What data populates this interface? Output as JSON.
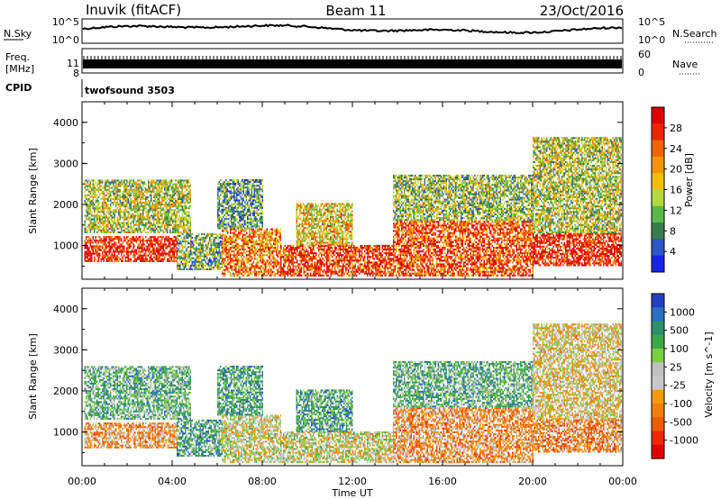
{
  "header": {
    "station": "Inuvik (fitACF)",
    "beam": "Beam 11",
    "date": "23/Oct/2016"
  },
  "nsky_panel": {
    "left_label": "N.Sky",
    "left_ticks": [
      "10^5",
      "10^0"
    ],
    "right_ticks": [
      "10^5",
      "10^0"
    ],
    "right_label": "N.Search"
  },
  "freq_panel": {
    "left_label_line1": "Freq.",
    "left_label_line2": "[MHz]",
    "left_ticks": [
      "11",
      "8"
    ],
    "right_ticks": [
      "60",
      "0"
    ],
    "right_label": "Nave"
  },
  "cpid_panel": {
    "label": "CPID",
    "program": "twofsound 3503"
  },
  "chart_data": [
    {
      "type": "heatmap",
      "title": "",
      "xlabel": "",
      "ylabel": "Slant Range [km]",
      "x_ticks": [
        "00:00",
        "04:00",
        "08:00",
        "12:00",
        "16:00",
        "20:00",
        "00:00"
      ],
      "x_range_hours": [
        0,
        24
      ],
      "y_ticks": [
        1000,
        2000,
        3000,
        4000
      ],
      "ylim": [
        180,
        4500
      ],
      "colorbar": {
        "label": "Power [dB]",
        "ticks": [
          "4",
          "8",
          "12",
          "16",
          "20",
          "24",
          "28"
        ],
        "colors": [
          "#1a22e8",
          "#2d55c4",
          "#3a7d4c",
          "#58b84a",
          "#b4d840",
          "#f0c000",
          "#f59400",
          "#f26300",
          "#ee2600",
          "#e00000"
        ]
      },
      "colors": {
        "power_high": "#ee1c00",
        "power_mid": "#f59400",
        "power_low": "#3a7d4c",
        "power_lowest": "#1a3ec8"
      },
      "regions": [
        {
          "t0": 0.1,
          "t1": 4.2,
          "r0": 600,
          "r1": 1200,
          "level": 0.9
        },
        {
          "t0": 0.1,
          "t1": 4.8,
          "r0": 1300,
          "r1": 2600,
          "level": 0.45
        },
        {
          "t0": 4.2,
          "t1": 6.2,
          "r0": 400,
          "r1": 1300,
          "level": 0.35
        },
        {
          "t0": 6.2,
          "t1": 8.8,
          "r0": 250,
          "r1": 1400,
          "level": 0.7
        },
        {
          "t0": 6.0,
          "t1": 8.0,
          "r0": 1400,
          "r1": 2600,
          "level": 0.3
        },
        {
          "t0": 8.8,
          "t1": 13.8,
          "r0": 250,
          "r1": 1000,
          "level": 0.85
        },
        {
          "t0": 9.5,
          "t1": 12.0,
          "r0": 1000,
          "r1": 2000,
          "level": 0.55
        },
        {
          "t0": 13.8,
          "t1": 20.0,
          "r0": 250,
          "r1": 1600,
          "level": 0.8
        },
        {
          "t0": 13.8,
          "t1": 20.0,
          "r0": 1600,
          "r1": 2700,
          "level": 0.4
        },
        {
          "t0": 20.0,
          "t1": 23.9,
          "r0": 500,
          "r1": 1300,
          "level": 0.9
        },
        {
          "t0": 20.0,
          "t1": 23.9,
          "r0": 1300,
          "r1": 3600,
          "level": 0.45
        }
      ]
    },
    {
      "type": "heatmap",
      "title": "",
      "xlabel": "Time UT",
      "ylabel": "Slant Range [km]",
      "x_ticks": [
        "00:00",
        "04:00",
        "08:00",
        "12:00",
        "16:00",
        "20:00",
        "00:00"
      ],
      "x_range_hours": [
        0,
        24
      ],
      "y_ticks": [
        1000,
        2000,
        3000,
        4000
      ],
      "ylim": [
        180,
        4500
      ],
      "colorbar": {
        "label": "Velocity [m s^-1]",
        "ticks": [
          "1000",
          "500",
          "100",
          "25",
          "-25",
          "-100",
          "-500",
          "-1000"
        ],
        "colors": [
          "#2040c0",
          "#2a6fc0",
          "#2e8f6a",
          "#3aa848",
          "#7cd040",
          "#c0c0c0",
          "#c8c8c8",
          "#f59a00",
          "#f28000",
          "#f25a00",
          "#ee2800",
          "#e00000"
        ]
      },
      "colors": {
        "toward": "#2e8f4a",
        "away": "#f59000",
        "ground_scatter": "#c4c4c4"
      },
      "regions": [
        {
          "t0": 0.1,
          "t1": 4.2,
          "r0": 600,
          "r1": 1200,
          "level": -0.3
        },
        {
          "t0": 0.1,
          "t1": 4.8,
          "r0": 1300,
          "r1": 2600,
          "level": 0.4
        },
        {
          "t0": 4.2,
          "t1": 6.2,
          "r0": 400,
          "r1": 1300,
          "level": 0.5
        },
        {
          "t0": 6.2,
          "t1": 8.8,
          "r0": 250,
          "r1": 1400,
          "level": 0.0
        },
        {
          "t0": 6.0,
          "t1": 8.0,
          "r0": 1400,
          "r1": 2600,
          "level": 0.5
        },
        {
          "t0": 8.8,
          "t1": 13.8,
          "r0": 250,
          "r1": 1000,
          "level": 0.0
        },
        {
          "t0": 9.5,
          "t1": 12.0,
          "r0": 1000,
          "r1": 2000,
          "level": 0.5
        },
        {
          "t0": 13.8,
          "t1": 20.0,
          "r0": 250,
          "r1": 1600,
          "level": -0.35
        },
        {
          "t0": 13.8,
          "t1": 20.0,
          "r0": 1600,
          "r1": 2700,
          "level": 0.4
        },
        {
          "t0": 20.0,
          "t1": 23.9,
          "r0": 500,
          "r1": 1300,
          "level": -0.4
        },
        {
          "t0": 20.0,
          "t1": 23.9,
          "r0": 1300,
          "r1": 3600,
          "level": -0.1
        }
      ]
    }
  ]
}
